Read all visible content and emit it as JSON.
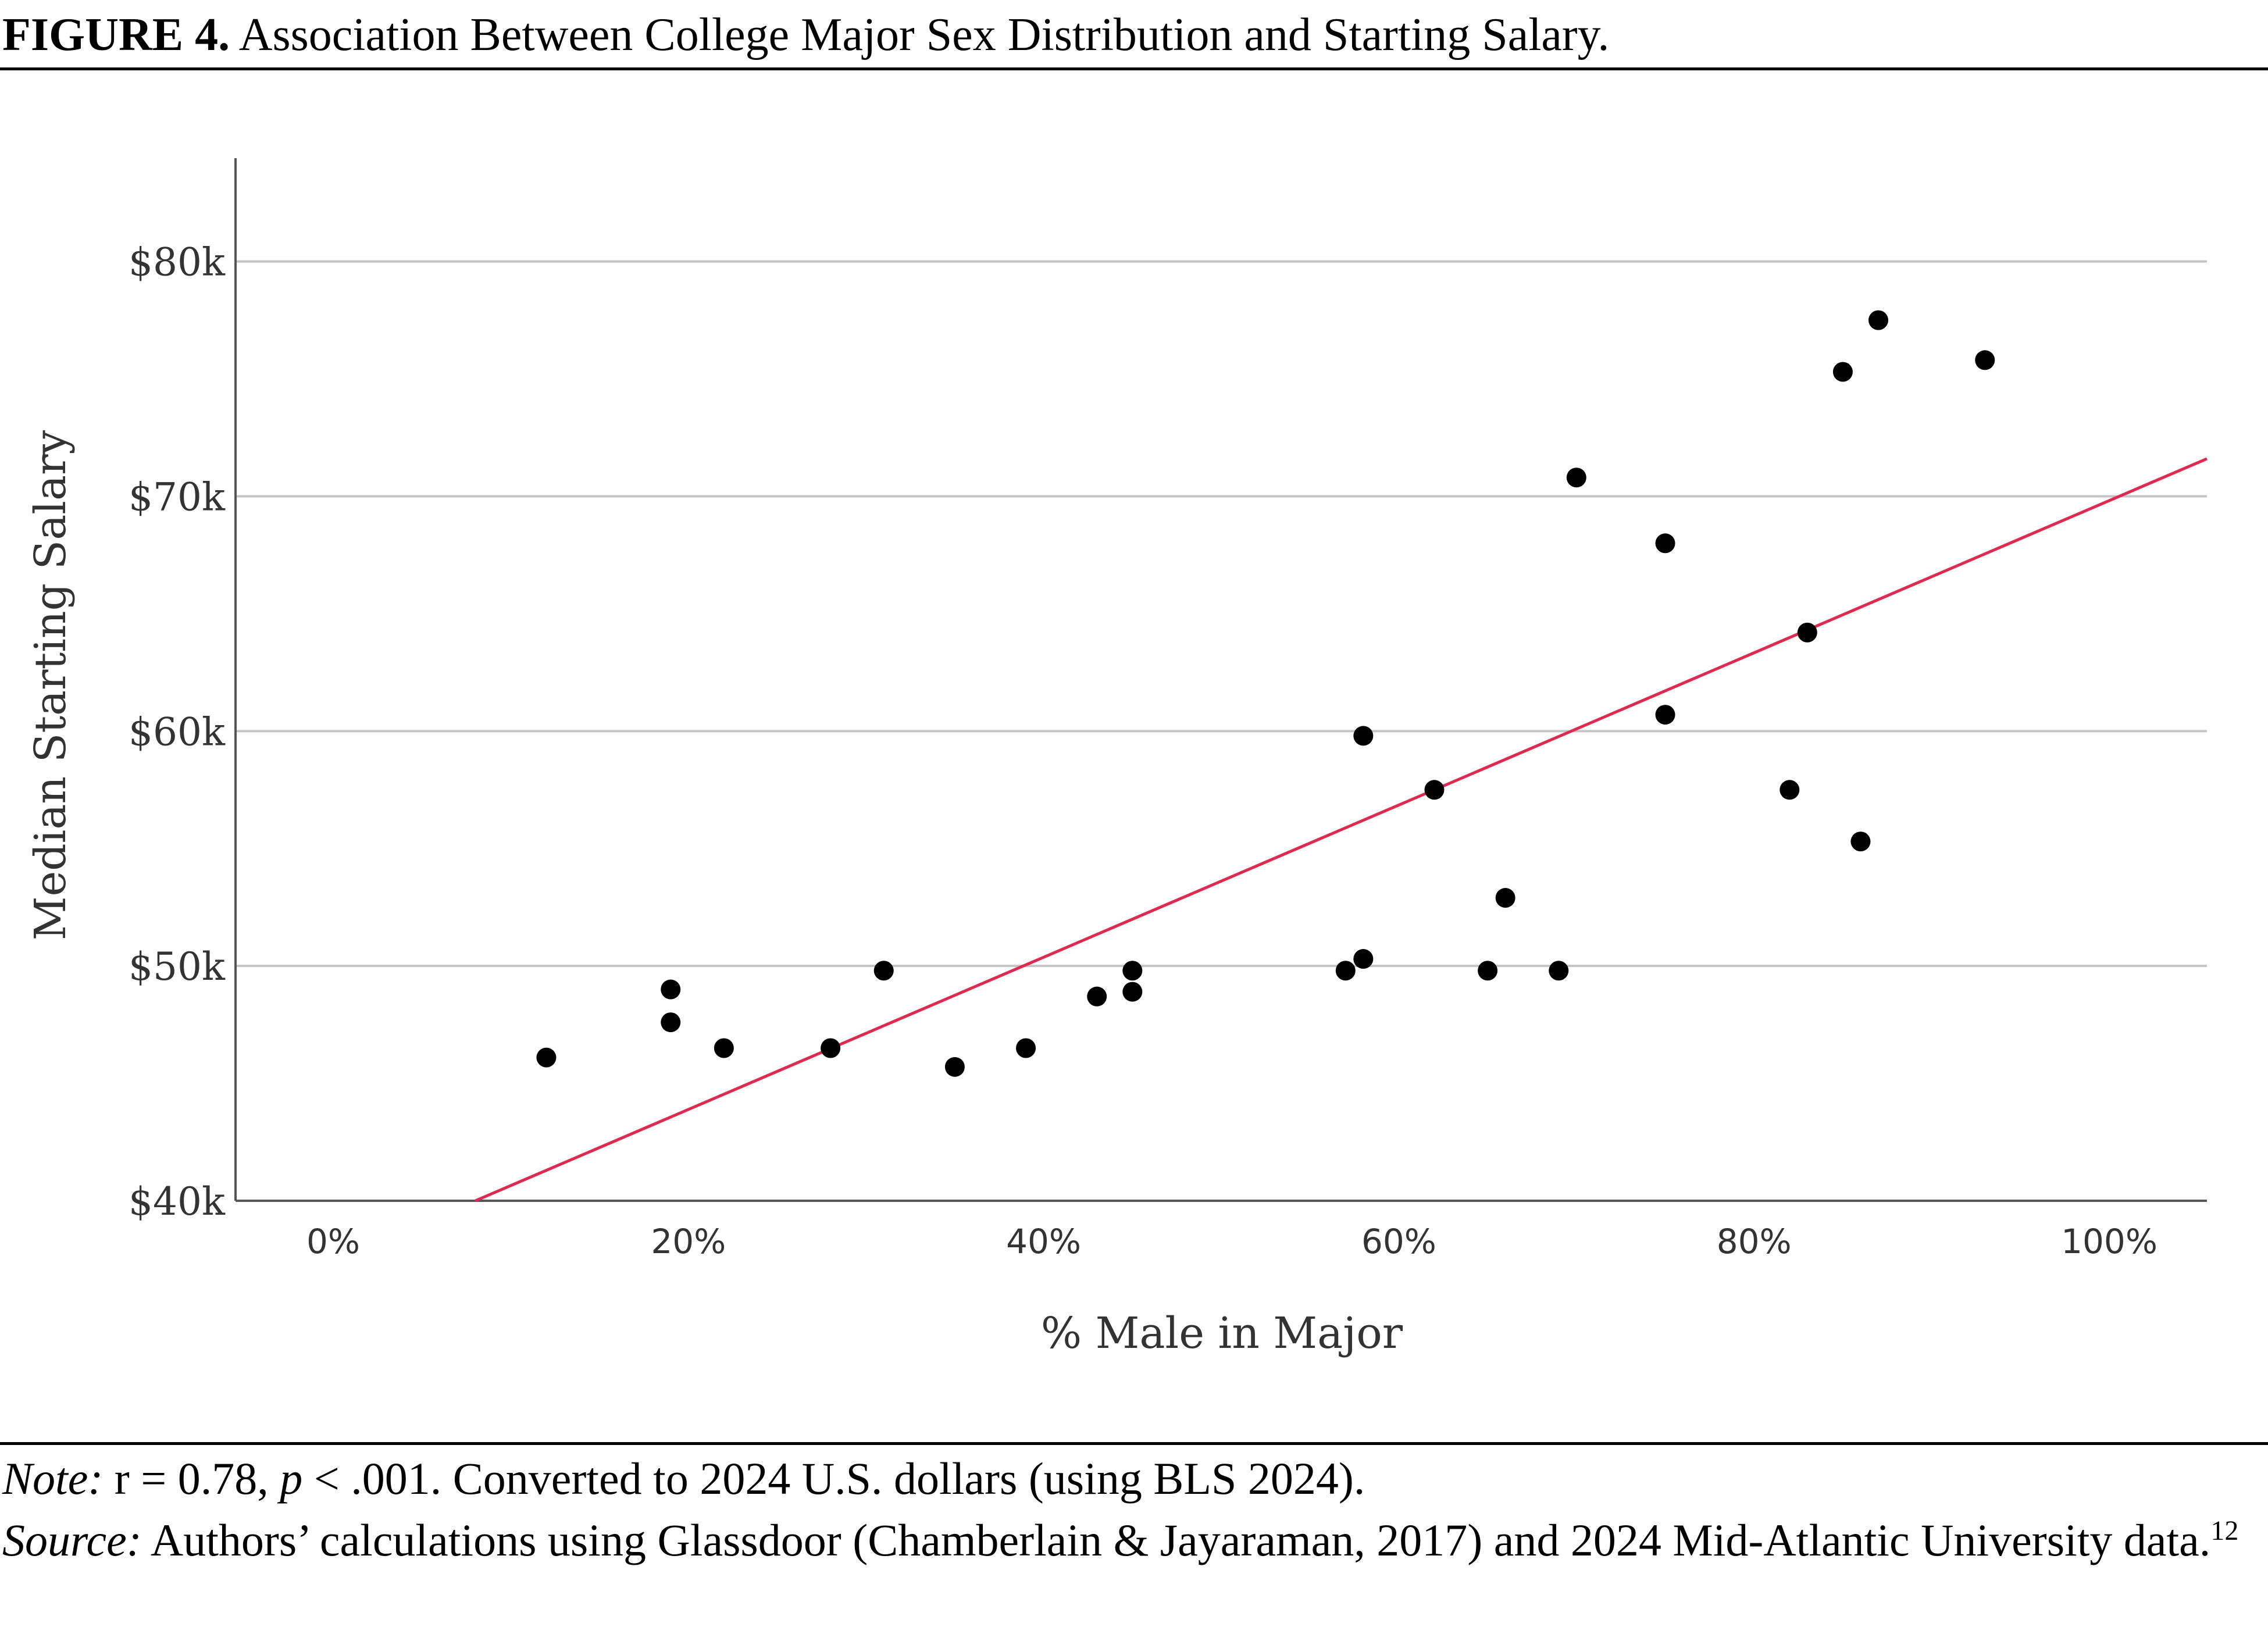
{
  "figure": {
    "label": "FIGURE 4.",
    "caption": "Association Between College Major Sex Distribution and Starting Salary."
  },
  "notes": {
    "note_label": "Note:",
    "note_r": "r = 0.78,",
    "note_p": "p",
    "note_rest": "< .001. Converted to 2024 U.S. dollars (using BLS 2024).",
    "source_label": "Source:",
    "source_text": "Authors’ calculations using Glassdoor (Chamberlain & Jayaraman, 2017) and 2024 Mid-Atlantic University data.",
    "source_footnote": "12"
  },
  "chart_data": {
    "type": "scatter",
    "xlabel": "% Male in Major",
    "ylabel": "Median Starting Salary",
    "x_ticks": [
      0,
      20,
      40,
      60,
      80,
      100
    ],
    "x_tick_labels": [
      "0%",
      "20%",
      "40%",
      "60%",
      "80%",
      "100%"
    ],
    "y_ticks": [
      40000,
      50000,
      60000,
      70000,
      80000
    ],
    "y_tick_labels": [
      "$40k",
      "$50k",
      "$60k",
      "$70k",
      "$80k"
    ],
    "xlim": [
      -5.5,
      105.5
    ],
    "ylim": [
      40000,
      84400
    ],
    "grid": "horizontal",
    "point_color": "#000000",
    "fit_line_color": "#e0294f",
    "points": [
      {
        "x": 12,
        "y": 46100
      },
      {
        "x": 19,
        "y": 49000
      },
      {
        "x": 19,
        "y": 47600
      },
      {
        "x": 22,
        "y": 46500
      },
      {
        "x": 28,
        "y": 46500
      },
      {
        "x": 31,
        "y": 49800
      },
      {
        "x": 35,
        "y": 45700
      },
      {
        "x": 39,
        "y": 46500
      },
      {
        "x": 43,
        "y": 48700
      },
      {
        "x": 45,
        "y": 49800
      },
      {
        "x": 45,
        "y": 48900
      },
      {
        "x": 57,
        "y": 49800
      },
      {
        "x": 58,
        "y": 50300
      },
      {
        "x": 58,
        "y": 59800
      },
      {
        "x": 62,
        "y": 57500
      },
      {
        "x": 65,
        "y": 49800
      },
      {
        "x": 66,
        "y": 52900
      },
      {
        "x": 69,
        "y": 49800
      },
      {
        "x": 70,
        "y": 70800
      },
      {
        "x": 75,
        "y": 68000
      },
      {
        "x": 75,
        "y": 60700
      },
      {
        "x": 82,
        "y": 57500
      },
      {
        "x": 83,
        "y": 64200
      },
      {
        "x": 85,
        "y": 75300
      },
      {
        "x": 86,
        "y": 55300
      },
      {
        "x": 87,
        "y": 77500
      },
      {
        "x": 93,
        "y": 75800
      }
    ],
    "fit_line": {
      "x": [
        8,
        105.5
      ],
      "y": [
        40000,
        71600
      ]
    }
  }
}
